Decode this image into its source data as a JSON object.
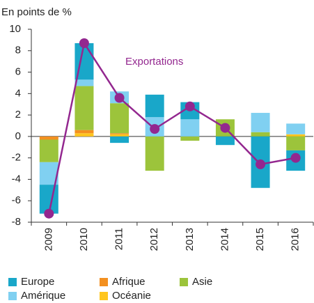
{
  "chart_data": {
    "type": "bar",
    "stacked": true,
    "y_axis_label": "En points de %",
    "categories": [
      "2009",
      "2010",
      "2011",
      "2012",
      "2013",
      "2014",
      "2015",
      "2016"
    ],
    "series": [
      {
        "name": "Océanie",
        "color": "#ffc61e",
        "values": [
          0,
          0.3,
          0.2,
          0,
          0,
          0,
          0,
          0.2
        ]
      },
      {
        "name": "Afrique",
        "color": "#f39020",
        "values": [
          -0.3,
          0.3,
          0.1,
          0,
          0,
          0,
          0,
          0
        ]
      },
      {
        "name": "Asie",
        "color": "#9cc43b",
        "values": [
          -2.1,
          4.1,
          2.8,
          -3.2,
          -0.4,
          1.6,
          0.4,
          -1.3
        ]
      },
      {
        "name": "Amérique",
        "color": "#80d0f1",
        "values": [
          -2.1,
          0.6,
          1.1,
          1.8,
          1.6,
          0,
          1.8,
          1.0
        ]
      },
      {
        "name": "Europe",
        "color": "#19a7c9",
        "values": [
          -2.7,
          3.4,
          -0.6,
          2.1,
          1.6,
          -0.8,
          -4.8,
          -1.9
        ]
      },
      {
        "name": "Exportations",
        "color": "#93278f",
        "type": "line",
        "values": [
          -7.2,
          8.7,
          3.6,
          0.7,
          2.8,
          0.8,
          -2.6,
          -2.0
        ]
      }
    ],
    "ylim": [
      -8,
      10
    ],
    "yticks": [
      -8,
      -6,
      -4,
      -2,
      0,
      2,
      4,
      6,
      8,
      10
    ]
  }
}
